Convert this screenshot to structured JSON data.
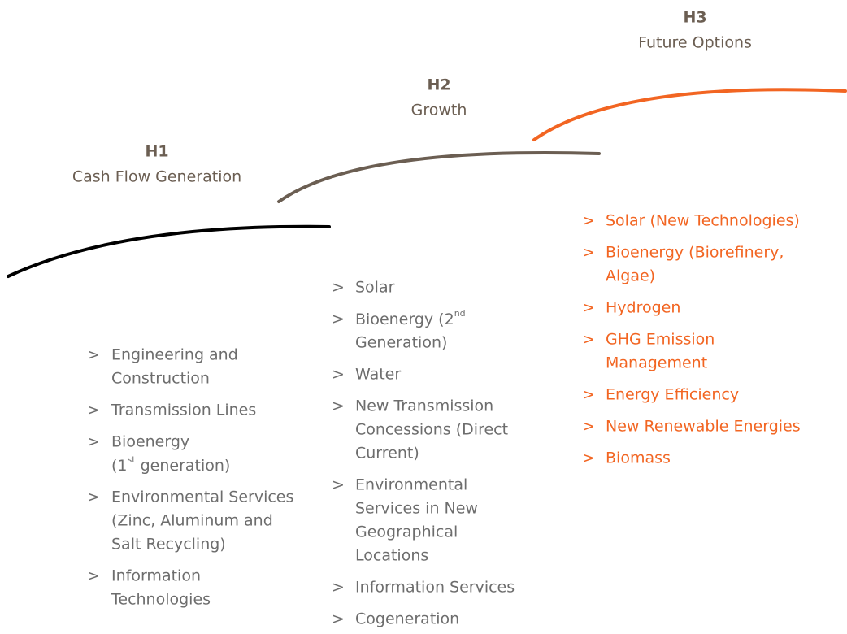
{
  "marker": ">",
  "horizons": [
    {
      "label": "H1",
      "title": "Cash Flow Generation",
      "items": [
        {
          "lines": [
            "Engineering and",
            "Construction"
          ]
        },
        {
          "lines": [
            "Transmission Lines"
          ]
        },
        {
          "lines": [
            "Bioenergy",
            {
              "text": "(1",
              "sup": "st",
              "after": " generation)"
            }
          ]
        },
        {
          "lines": [
            "Environmental Services",
            "(Zinc, Aluminum and",
            "Salt Recycling)"
          ]
        },
        {
          "lines": [
            "Information",
            "Technologies"
          ]
        }
      ]
    },
    {
      "label": "H2",
      "title": "Growth",
      "items": [
        {
          "lines": [
            "Solar"
          ]
        },
        {
          "lines": [
            {
              "text": "Bioenergy (2",
              "sup": "nd"
            },
            "Generation)"
          ]
        },
        {
          "lines": [
            "Water"
          ]
        },
        {
          "lines": [
            "New Transmission",
            "Concessions (Direct",
            "Current)"
          ]
        },
        {
          "lines": [
            "Environmental",
            "Services in New",
            "Geographical",
            "Locations"
          ]
        },
        {
          "lines": [
            "Information Services"
          ]
        },
        {
          "lines": [
            "Cogeneration"
          ]
        }
      ]
    },
    {
      "label": "H3",
      "title": "Future Options",
      "items": [
        {
          "lines": [
            "Solar (New Technologies)"
          ]
        },
        {
          "lines": [
            "Bioenergy (Biorefinery,",
            "Algae)"
          ]
        },
        {
          "lines": [
            "Hydrogen"
          ]
        },
        {
          "lines": [
            "GHG Emission",
            "Management"
          ]
        },
        {
          "lines": [
            "Energy Efficiency"
          ]
        },
        {
          "lines": [
            "New Renewable Energies"
          ]
        },
        {
          "lines": [
            "Biomass"
          ]
        }
      ]
    }
  ]
}
